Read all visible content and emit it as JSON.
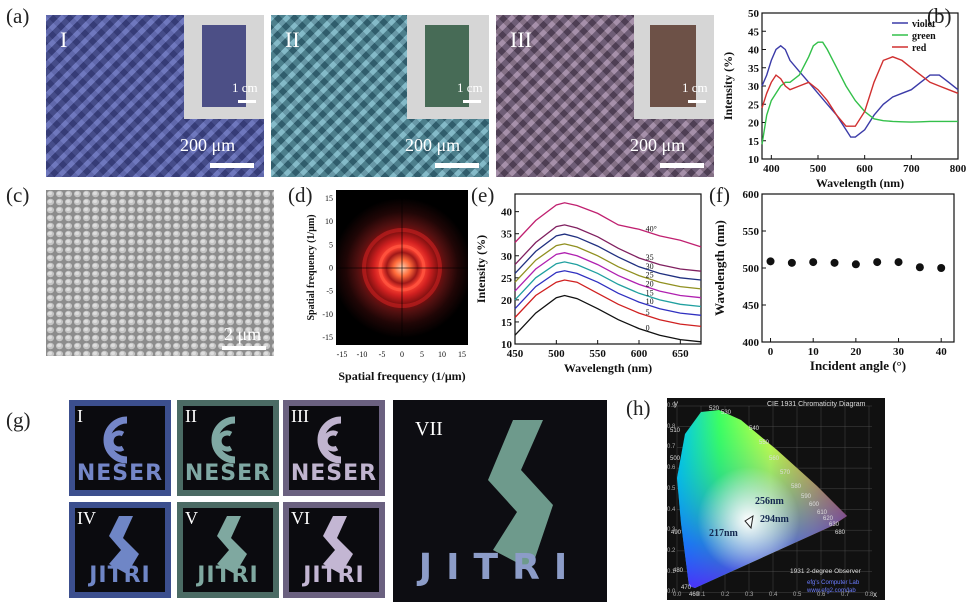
{
  "panel_labels": {
    "a": "(a)",
    "b": "(b)",
    "c": "(c)",
    "d": "(d)",
    "e": "(e)",
    "f": "(f)",
    "g": "(g)",
    "h": "(h)"
  },
  "panel_a": {
    "samples": [
      {
        "roman": "I",
        "scale": "200 μm",
        "inset_scale": "1 cm",
        "color": "#6b6fc2",
        "fabric": "#4c4f86"
      },
      {
        "roman": "II",
        "scale": "200 μm",
        "inset_scale": "1 cm",
        "color": "#6fb0bc",
        "fabric": "#476b56"
      },
      {
        "roman": "III",
        "scale": "200 μm",
        "inset_scale": "1 cm",
        "color": "#9a7f9a",
        "fabric": "#6d5147"
      }
    ]
  },
  "panel_c": {
    "scale": "2 μm"
  },
  "panel_d": {
    "xlabel": "Spatial frequency (1/μm)",
    "ylabel": "Spatial frequency (1/μm)",
    "ticks": [
      "-15",
      "-10",
      "-5",
      "0",
      "5",
      "10",
      "15"
    ]
  },
  "panel_g": {
    "signs": [
      {
        "roman": "I",
        "word": "NESER",
        "color": "#7486c8",
        "frame": "#3c4f8e"
      },
      {
        "roman": "II",
        "word": "NESER",
        "color": "#7fa8a3",
        "frame": "#4b6b64"
      },
      {
        "roman": "III",
        "word": "NESER",
        "color": "#c0b4cf",
        "frame": "#6b6180"
      },
      {
        "roman": "IV",
        "word": "JITRI",
        "color": "#6f86c6",
        "frame": "#3c4f8e"
      },
      {
        "roman": "V",
        "word": "JITRI",
        "color": "#7fa8a0",
        "frame": "#4b6b64"
      },
      {
        "roman": "VI",
        "word": "JITRI",
        "color": "#c3b6d3",
        "frame": "#6b6180"
      }
    ],
    "big": {
      "roman": "VII",
      "word": "JITRI"
    }
  },
  "panel_h": {
    "title": "CIE 1931 Chromaticity Diagram",
    "observer": "1931 2-degree Observer",
    "credit1": "efg's Computer Lab",
    "credit2": "www.efg2.com/lab",
    "points": [
      {
        "label": "256nm"
      },
      {
        "label": "217nm"
      },
      {
        "label": "294nm"
      }
    ],
    "wavelength_labels": [
      "520",
      "530",
      "540",
      "550",
      "560",
      "570",
      "580",
      "590",
      "600",
      "610",
      "620",
      "630",
      "680",
      "510",
      "500",
      "490",
      "480",
      "470",
      "460"
    ],
    "x_ticks": [
      "0.0",
      "0.1",
      "0.2",
      "0.3",
      "0.4",
      "0.5",
      "0.6",
      "0.7",
      "0.8"
    ],
    "y_ticks": [
      "0.9",
      "0.8",
      "0.7",
      "0.6",
      "0.5",
      "0.4",
      "0.3",
      "0.2",
      "0.1",
      "0.0"
    ],
    "axis_x": "x",
    "axis_y": "y"
  },
  "chart_data": [
    {
      "panel": "b",
      "type": "line",
      "xlabel": "Wavelength (nm)",
      "ylabel": "Intensity (%)",
      "xlim": [
        380,
        800
      ],
      "ylim": [
        10,
        50
      ],
      "xticks": [
        400,
        500,
        600,
        700,
        800
      ],
      "yticks": [
        10,
        15,
        20,
        25,
        30,
        35,
        40,
        45,
        50
      ],
      "legend": "top-right",
      "series": [
        {
          "name": "violet",
          "color": "#3b3ba8",
          "x": [
            380,
            390,
            400,
            410,
            420,
            430,
            440,
            460,
            480,
            500,
            520,
            540,
            560,
            570,
            580,
            600,
            620,
            640,
            660,
            680,
            700,
            720,
            740,
            760,
            780,
            800
          ],
          "y": [
            30,
            33,
            37,
            40,
            41,
            40,
            37,
            34,
            31,
            28,
            25,
            22,
            18,
            16,
            16,
            18,
            22,
            25,
            27,
            28,
            29,
            31,
            33,
            33,
            31,
            29
          ]
        },
        {
          "name": "green",
          "color": "#33c04a",
          "x": [
            380,
            390,
            400,
            410,
            420,
            430,
            440,
            460,
            480,
            490,
            500,
            510,
            520,
            540,
            560,
            580,
            600,
            620,
            640,
            660,
            680,
            700,
            720,
            740,
            760,
            780,
            800
          ],
          "y": [
            14,
            22,
            26,
            28,
            30,
            31,
            31,
            33,
            38,
            41,
            42,
            42,
            40,
            35,
            30,
            26,
            23,
            21,
            20.5,
            20.3,
            20.2,
            20.1,
            20.2,
            20.3,
            20.3,
            20.3,
            20.3
          ]
        },
        {
          "name": "red",
          "color": "#d03030",
          "x": [
            380,
            390,
            400,
            410,
            420,
            430,
            440,
            460,
            480,
            500,
            520,
            540,
            560,
            580,
            600,
            620,
            640,
            660,
            680,
            700,
            720,
            740,
            760,
            780,
            800
          ],
          "y": [
            24,
            28,
            31,
            33,
            32,
            30,
            29,
            30,
            31,
            29,
            26,
            22,
            19,
            19,
            23,
            31,
            37,
            38,
            37,
            35,
            33,
            31,
            30,
            29,
            28
          ]
        }
      ]
    },
    {
      "panel": "e",
      "type": "line",
      "xlabel": "Wavelength (nm)",
      "ylabel": "Intensity (%)",
      "xlim": [
        450,
        675
      ],
      "ylim": [
        10,
        44
      ],
      "xticks": [
        450,
        500,
        550,
        600,
        650
      ],
      "yticks": [
        10,
        15,
        20,
        25,
        30,
        35,
        40
      ],
      "series": [
        {
          "name": "0°",
          "color": "#111111",
          "x": [
            450,
            475,
            500,
            510,
            525,
            550,
            575,
            600,
            625,
            650,
            675
          ],
          "y": [
            12,
            17,
            20.5,
            21,
            20.3,
            18,
            15.5,
            13.5,
            12,
            11,
            10.5
          ]
        },
        {
          "name": "5°",
          "color": "#d02020",
          "x": [
            450,
            475,
            500,
            510,
            525,
            550,
            575,
            600,
            625,
            650,
            675
          ],
          "y": [
            16,
            21,
            24,
            24.5,
            24,
            21.5,
            19,
            17,
            15.5,
            14.5,
            14
          ]
        },
        {
          "name": "10°",
          "color": "#3030c0",
          "x": [
            450,
            475,
            500,
            510,
            525,
            550,
            575,
            600,
            625,
            650,
            675
          ],
          "y": [
            18,
            23,
            26.2,
            26.6,
            26,
            24,
            21.5,
            19.5,
            18,
            17,
            16.5
          ]
        },
        {
          "name": "15°",
          "color": "#20a0a0",
          "x": [
            450,
            475,
            500,
            510,
            525,
            550,
            575,
            600,
            625,
            650,
            675
          ],
          "y": [
            20,
            25,
            28.2,
            28.6,
            28,
            26,
            23.5,
            21.5,
            20,
            19,
            18.5
          ]
        },
        {
          "name": "20°",
          "color": "#b020b0",
          "x": [
            450,
            475,
            500,
            510,
            525,
            550,
            575,
            600,
            625,
            650,
            675
          ],
          "y": [
            22,
            27,
            30.3,
            30.7,
            30,
            28,
            25.5,
            23.5,
            22,
            21,
            20.5
          ]
        },
        {
          "name": "25°",
          "color": "#909020",
          "x": [
            450,
            475,
            500,
            510,
            525,
            550,
            575,
            600,
            625,
            650,
            675
          ],
          "y": [
            24,
            29,
            32.3,
            32.7,
            32,
            30,
            27.5,
            25.5,
            24,
            23,
            22.5
          ]
        },
        {
          "name": "30°",
          "color": "#203080",
          "x": [
            450,
            475,
            500,
            510,
            525,
            550,
            575,
            600,
            625,
            650,
            675
          ],
          "y": [
            26,
            31,
            34.5,
            34.9,
            34.2,
            32.2,
            29.7,
            27.5,
            26,
            25,
            24.5
          ]
        },
        {
          "name": "35°",
          "color": "#802060",
          "x": [
            450,
            475,
            500,
            510,
            525,
            550,
            575,
            600,
            625,
            650,
            675
          ],
          "y": [
            28,
            33,
            36.6,
            37,
            36.3,
            34.3,
            31.7,
            29.5,
            28,
            27,
            26.5
          ]
        },
        {
          "name": "40°",
          "color": "#c02070",
          "x": [
            450,
            475,
            500,
            510,
            525,
            550,
            575,
            600,
            625,
            650,
            675
          ],
          "y": [
            33,
            38,
            41.5,
            42,
            41.4,
            39.6,
            37,
            36,
            34.5,
            33.5,
            32
          ]
        }
      ],
      "curve_labels": [
        "40°",
        "35",
        "30",
        "25",
        "20",
        "15",
        "10",
        "5",
        "0"
      ]
    },
    {
      "panel": "f",
      "type": "scatter",
      "xlabel": "Incident angle (°)",
      "ylabel": "Wavelength (nm)",
      "xlim": [
        -2,
        43
      ],
      "ylim": [
        400,
        600
      ],
      "xticks": [
        0,
        10,
        20,
        30,
        40
      ],
      "yticks": [
        400,
        450,
        500,
        550,
        600
      ],
      "x": [
        0,
        5,
        10,
        15,
        20,
        25,
        30,
        35,
        40
      ],
      "y": [
        509,
        507,
        508,
        507,
        505,
        508,
        508,
        501,
        500
      ]
    }
  ]
}
